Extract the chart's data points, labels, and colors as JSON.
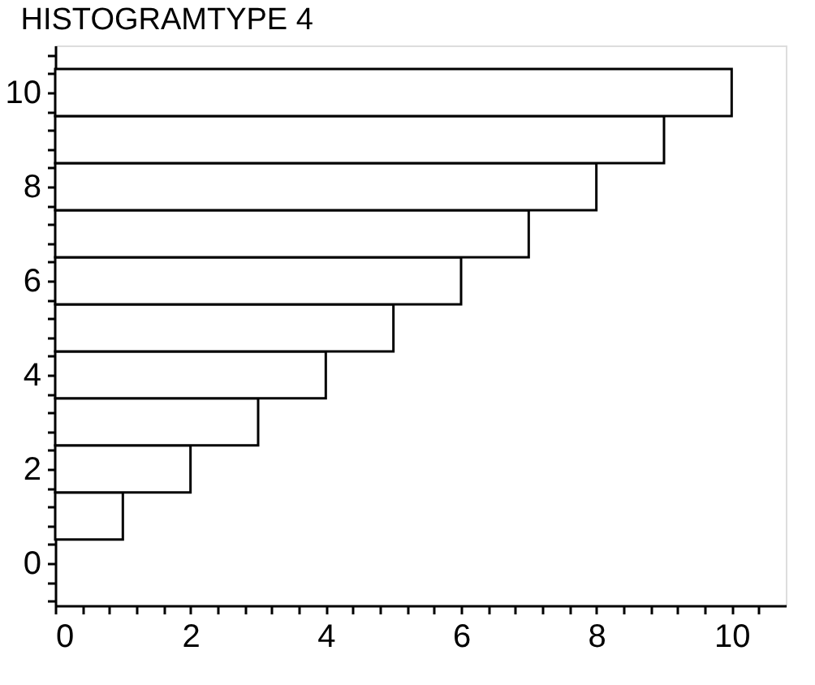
{
  "chart_data": {
    "type": "histogram",
    "orientation": "horizontal",
    "title": "HISTOGRAMTYPE 4",
    "bins": [
      0.5,
      1.5,
      2.5,
      3.5,
      4.5,
      5.5,
      6.5,
      7.5,
      8.5,
      9.5,
      10.5
    ],
    "values": [
      1,
      2,
      3,
      4,
      5,
      6,
      7,
      8,
      9,
      10
    ],
    "color": "#ffffff",
    "xlim": [
      0,
      10.8
    ],
    "ylim": [
      -0.9,
      11
    ],
    "xticks": [
      0,
      {
        "value": 0.4,
        "label": null
      },
      {
        "value": 0.8,
        "label": null
      },
      {
        "value": 1.2,
        "label": null
      },
      {
        "value": 1.6,
        "label": null
      },
      2,
      {
        "value": 2.4,
        "label": null
      },
      {
        "value": 2.8,
        "label": null
      },
      {
        "value": 3.2,
        "label": null
      },
      {
        "value": 3.6,
        "label": null
      },
      4,
      {
        "value": 4.4,
        "label": null
      },
      {
        "value": 4.8,
        "label": null
      },
      {
        "value": 5.2,
        "label": null
      },
      {
        "value": 5.6,
        "label": null
      },
      6,
      {
        "value": 6.4,
        "label": null
      },
      {
        "value": 6.8,
        "label": null
      },
      {
        "value": 7.2,
        "label": null
      },
      {
        "value": 7.6,
        "label": null
      },
      8,
      {
        "value": 8.4,
        "label": null
      },
      {
        "value": 8.8,
        "label": null
      },
      {
        "value": 9.2,
        "label": null
      },
      {
        "value": 9.6,
        "label": null
      },
      10,
      {
        "value": 10.4,
        "label": null
      }
    ],
    "yticks": [
      {
        "value": -0.8,
        "label": null
      },
      {
        "value": -0.4,
        "label": null
      },
      0,
      {
        "value": 0.4,
        "label": null
      },
      {
        "value": 0.8,
        "label": null
      },
      {
        "value": 1.2,
        "label": null
      },
      {
        "value": 1.6,
        "label": null
      },
      2,
      {
        "value": 2.4,
        "label": null
      },
      {
        "value": 2.8,
        "label": null
      },
      {
        "value": 3.2,
        "label": null
      },
      {
        "value": 3.6,
        "label": null
      },
      4,
      {
        "value": 4.4,
        "label": null
      },
      {
        "value": 4.8,
        "label": null
      },
      {
        "value": 5.2,
        "label": null
      },
      {
        "value": 5.6,
        "label": null
      },
      6,
      {
        "value": 6.4,
        "label": null
      },
      {
        "value": 6.8,
        "label": null
      },
      {
        "value": 7.2,
        "label": null
      },
      {
        "value": 7.6,
        "label": null
      },
      8,
      {
        "value": 8.4,
        "label": null
      },
      {
        "value": 8.8,
        "label": null
      },
      {
        "value": 9.2,
        "label": null
      },
      {
        "value": 9.6,
        "label": null
      },
      10,
      {
        "value": 10.4,
        "label": null
      },
      {
        "value": 10.8,
        "label": null
      }
    ],
    "grid": false
  }
}
